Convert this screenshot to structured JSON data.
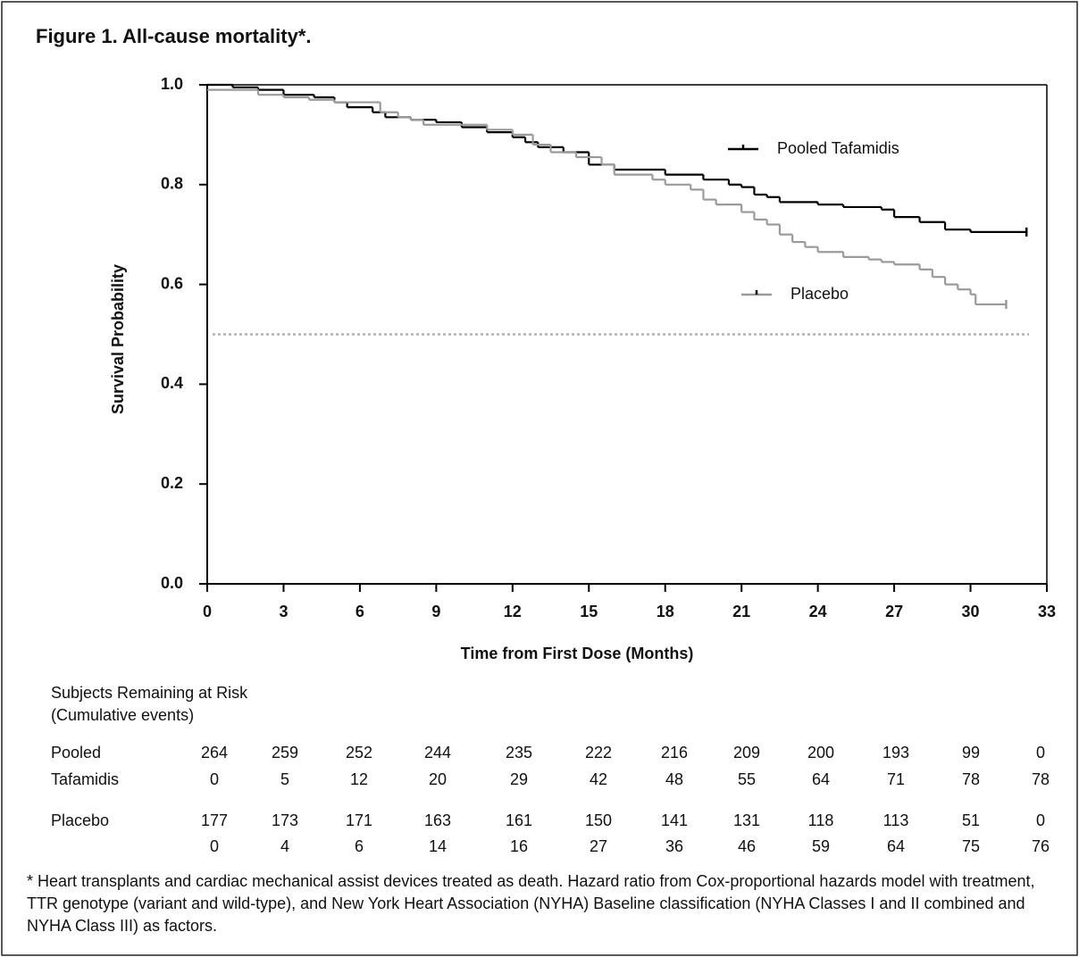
{
  "chart_data": {
    "type": "step",
    "title": "Figure 1. All-cause mortality*.",
    "xlabel": "Time from First Dose (Months)",
    "ylabel": "Survival Probability",
    "xlim": [
      0,
      33
    ],
    "xticks": [
      0,
      3,
      6,
      9,
      12,
      15,
      18,
      21,
      24,
      27,
      30,
      33
    ],
    "ylim": [
      0,
      1
    ],
    "yticks": [
      {
        "value": 0,
        "label": "0.0"
      },
      0.2,
      0.4,
      0.6,
      0.8,
      {
        "value": 1,
        "label": "1.0"
      }
    ],
    "hline": {
      "value": 0.5,
      "color": "#b0b0b0",
      "style": "dotted"
    },
    "series": [
      {
        "name": "Pooled Tafamidis",
        "color": "#000000",
        "x": [
          0,
          1,
          2,
          3,
          4.2,
          5,
          5.5,
          6.5,
          7,
          8,
          9,
          10,
          11,
          12,
          12.5,
          13,
          14,
          15,
          16,
          18,
          19.5,
          20.5,
          21,
          21.5,
          22,
          22.5,
          24,
          25,
          26.5,
          27,
          28,
          29,
          30,
          32.2
        ],
        "values": [
          1.0,
          0.995,
          0.99,
          0.98,
          0.975,
          0.965,
          0.955,
          0.945,
          0.935,
          0.93,
          0.925,
          0.915,
          0.905,
          0.895,
          0.885,
          0.875,
          0.865,
          0.84,
          0.83,
          0.82,
          0.81,
          0.8,
          0.795,
          0.78,
          0.775,
          0.765,
          0.76,
          0.755,
          0.75,
          0.735,
          0.725,
          0.71,
          0.705,
          0.705
        ]
      },
      {
        "name": "Placebo",
        "color": "#9a9a9a",
        "x": [
          0,
          2,
          3,
          4,
          5,
          6.8,
          7.5,
          8,
          8.5,
          11,
          12,
          12.8,
          13.5,
          14.5,
          15.5,
          16,
          17.5,
          18,
          19,
          19.5,
          20,
          21,
          21.5,
          22,
          22.5,
          23,
          23.5,
          24,
          25,
          26,
          26.5,
          27,
          28,
          28.5,
          29,
          29.5,
          30,
          30.2,
          31.4
        ],
        "values": [
          0.99,
          0.98,
          0.975,
          0.97,
          0.965,
          0.945,
          0.935,
          0.93,
          0.92,
          0.91,
          0.9,
          0.88,
          0.865,
          0.855,
          0.84,
          0.82,
          0.81,
          0.8,
          0.79,
          0.77,
          0.76,
          0.745,
          0.73,
          0.72,
          0.7,
          0.685,
          0.675,
          0.665,
          0.655,
          0.65,
          0.645,
          0.64,
          0.63,
          0.615,
          0.6,
          0.59,
          0.58,
          0.56,
          0.56
        ]
      }
    ],
    "risk_table": {
      "title": [
        "Subjects Remaining at Risk",
        "(Cumulative events)"
      ],
      "groups": [
        {
          "label": [
            "Pooled",
            "Tafamidis"
          ],
          "at_risk": [
            264,
            259,
            252,
            244,
            235,
            222,
            216,
            209,
            200,
            193,
            99,
            0
          ],
          "events": [
            0,
            5,
            12,
            20,
            29,
            42,
            48,
            55,
            64,
            71,
            78,
            78
          ]
        },
        {
          "label": [
            "Placebo"
          ],
          "at_risk": [
            177,
            173,
            171,
            163,
            161,
            150,
            141,
            131,
            118,
            113,
            51,
            0
          ],
          "events": [
            0,
            4,
            6,
            14,
            16,
            27,
            36,
            46,
            59,
            64,
            75,
            76
          ]
        }
      ]
    },
    "footnote": "* Heart transplants and cardiac mechanical assist devices treated as death. Hazard ratio from Cox-proportional hazards model with treatment, TTR genotype (variant and wild-type), and New York Heart Association (NYHA) Baseline classification (NYHA Classes I and II combined and NYHA Class III) as factors."
  }
}
